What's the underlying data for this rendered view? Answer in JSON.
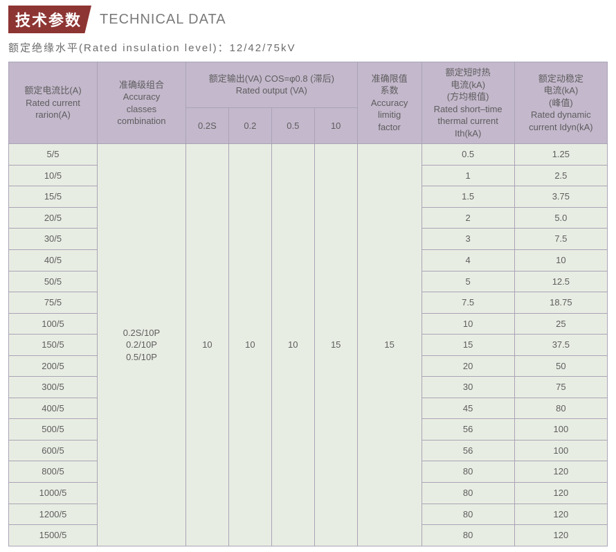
{
  "title": {
    "badge": "技术参数",
    "en": "TECHNICAL DATA"
  },
  "subtitle": "额定绝缘水平(Rated insulation level)：12/42/75kV",
  "headers": {
    "ratio": "额定电流比(A)\nRated current\nrarion(A)",
    "acc": "准确级组合\nAccuracy\nclasses\ncombination",
    "output": "额定输出(VA) COS=φ0.8 (滞后)\nRated output (VA)",
    "sub": [
      "0.2S",
      "0.2",
      "0.5",
      "10"
    ],
    "factor": "准确限值\n系数\nAccuracy\nlimitig\nfactor",
    "thermal": "额定短时热\n电流(kA)\n(方均根值)\nRated short–time\nthermal current\nIth(kA)",
    "dyn": "额定动稳定\n电流(kA)\n(峰值)\nRated dynamic\ncurrent Idyn(kA)"
  },
  "merge": {
    "acc": "0.2S/10P\n0.2/10P\n0.5/10P",
    "o1": "10",
    "o2": "10",
    "o3": "10",
    "o4": "15",
    "factor": "15"
  },
  "rows": [
    {
      "ratio": "5/5",
      "th": "0.5",
      "dyn": "1.25"
    },
    {
      "ratio": "10/5",
      "th": "1",
      "dyn": "2.5"
    },
    {
      "ratio": "15/5",
      "th": "1.5",
      "dyn": "3.75"
    },
    {
      "ratio": "20/5",
      "th": "2",
      "dyn": "5.0"
    },
    {
      "ratio": "30/5",
      "th": "3",
      "dyn": "7.5"
    },
    {
      "ratio": "40/5",
      "th": "4",
      "dyn": "10"
    },
    {
      "ratio": "50/5",
      "th": "5",
      "dyn": "12.5"
    },
    {
      "ratio": "75/5",
      "th": "7.5",
      "dyn": "18.75"
    },
    {
      "ratio": "100/5",
      "th": "10",
      "dyn": "25"
    },
    {
      "ratio": "150/5",
      "th": "15",
      "dyn": "37.5"
    },
    {
      "ratio": "200/5",
      "th": "20",
      "dyn": "50"
    },
    {
      "ratio": "300/5",
      "th": "30",
      "dyn": "75"
    },
    {
      "ratio": "400/5",
      "th": "45",
      "dyn": "80"
    },
    {
      "ratio": "500/5",
      "th": "56",
      "dyn": "100"
    },
    {
      "ratio": "600/5",
      "th": "56",
      "dyn": "100"
    },
    {
      "ratio": "800/5",
      "th": "80",
      "dyn": "120"
    },
    {
      "ratio": "1000/5",
      "th": "80",
      "dyn": "120"
    },
    {
      "ratio": "1200/5",
      "th": "80",
      "dyn": "120"
    },
    {
      "ratio": "1500/5",
      "th": "80",
      "dyn": "120"
    }
  ],
  "style": {
    "badge_bg": "#8d3533",
    "header_bg": "#c4b8cc",
    "cell_bg": "#e8ede3",
    "border": "#a9a3b6",
    "text": "#5d5d5d"
  }
}
